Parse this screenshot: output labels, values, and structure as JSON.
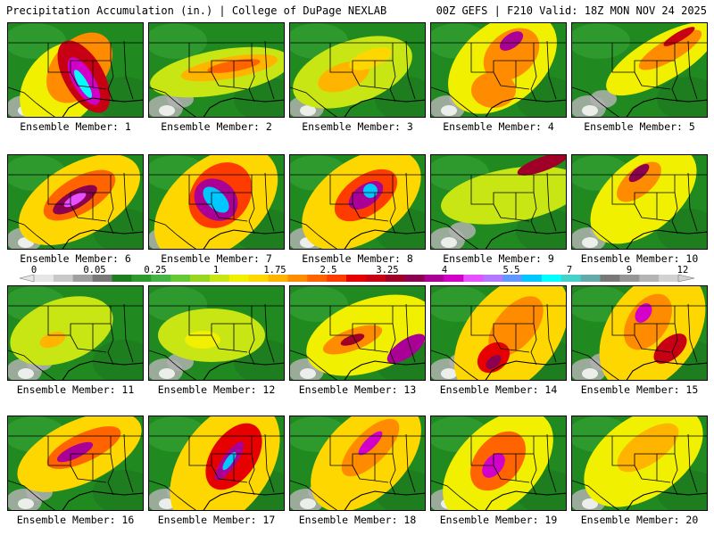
{
  "header": {
    "left": "Precipitation Accumulation (in.) | College of DuPage NEXLAB",
    "right": "00Z GEFS | F210 Valid: 18Z MON NOV 24 2025"
  },
  "colorbar": {
    "labels": [
      "0",
      "0.05",
      "0.25",
      "1",
      "1.75",
      "2.5",
      "3.25",
      "4",
      "5.5",
      "7",
      "9",
      "12"
    ],
    "colors": [
      "#e6e6e6",
      "#c8c8c8",
      "#a0a0a0",
      "#787878",
      "#1e7d1e",
      "#2e9a2e",
      "#44b244",
      "#66c833",
      "#99d61f",
      "#c8e614",
      "#f0f000",
      "#ffd700",
      "#ffb400",
      "#ff8c00",
      "#ff6400",
      "#ff3c00",
      "#e60000",
      "#c80014",
      "#a00028",
      "#8c0050",
      "#aa0096",
      "#d200c8",
      "#e650ff",
      "#b478ff",
      "#6496ff",
      "#00c8ff",
      "#00ffff",
      "#46d2c8",
      "#64aaaa",
      "#787878",
      "#969696",
      "#b4b4b4",
      "#d2d2d2"
    ]
  },
  "panels": [
    {
      "label": "Ensemble Member: 1"
    },
    {
      "label": "Ensemble Member: 2"
    },
    {
      "label": "Ensemble Member: 3"
    },
    {
      "label": "Ensemble Member: 4"
    },
    {
      "label": "Ensemble Member: 5"
    },
    {
      "label": "Ensemble Member: 6"
    },
    {
      "label": "Ensemble Member: 7"
    },
    {
      "label": "Ensemble Member: 8"
    },
    {
      "label": "Ensemble Member: 9"
    },
    {
      "label": "Ensemble Member: 10"
    },
    {
      "label": "Ensemble Member: 11"
    },
    {
      "label": "Ensemble Member: 12"
    },
    {
      "label": "Ensemble Member: 13"
    },
    {
      "label": "Ensemble Member: 14"
    },
    {
      "label": "Ensemble Member: 15"
    },
    {
      "label": "Ensemble Member: 16"
    },
    {
      "label": "Ensemble Member: 17"
    },
    {
      "label": "Ensemble Member: 18"
    },
    {
      "label": "Ensemble Member: 19"
    },
    {
      "label": "Ensemble Member: 20"
    }
  ]
}
